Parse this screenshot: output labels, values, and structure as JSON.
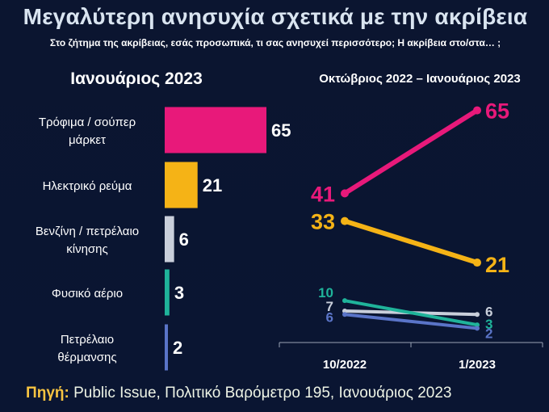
{
  "title": "Μεγαλύτερη ανησυχία σχετικά με την ακρίβεια",
  "subtitle": "Στο ζήτημα της ακρίβειας, εσάς προσωπικά, τι σας ανησυχεί περισσότερο; Η ακρίβεια στο/στα… ;",
  "source": {
    "label": "Πηγή:",
    "text": "Public Issue, Πολιτικό Βαρόμετρο 195, Ιανουάριος 2023"
  },
  "chart_data": [
    {
      "type": "bar",
      "orientation": "horizontal",
      "title": "Ιανουάριος 2023",
      "categories": [
        [
          "Τρόφιμα / σούπερ",
          "μάρκετ"
        ],
        [
          "Ηλεκτρικό ρεύμα"
        ],
        [
          "Βενζίνη / πετρέλαιο",
          "κίνησης"
        ],
        [
          "Φυσικό αέριο"
        ],
        [
          "Πετρέλαιο",
          "θέρμανσης"
        ]
      ],
      "values": [
        65,
        21,
        6,
        3,
        2
      ],
      "colors": [
        "#e8197a",
        "#f5b316",
        "#c9cfdb",
        "#1fb39a",
        "#5a74c8"
      ],
      "xlim": [
        0,
        65
      ]
    },
    {
      "type": "line",
      "title": "Οκτώβριος 2022 – Ιανουάριος 2023",
      "x": [
        "10/2022",
        "1/2023"
      ],
      "series": [
        {
          "values": [
            41,
            65
          ],
          "color": "#e8197a"
        },
        {
          "values": [
            33,
            21
          ],
          "color": "#f5b316"
        },
        {
          "values": [
            7,
            6
          ],
          "color": "#c9cfdb"
        },
        {
          "values": [
            10,
            3
          ],
          "color": "#1fb39a"
        },
        {
          "values": [
            6,
            2
          ],
          "color": "#5a74c8"
        }
      ],
      "ylim": [
        0,
        70
      ]
    }
  ]
}
